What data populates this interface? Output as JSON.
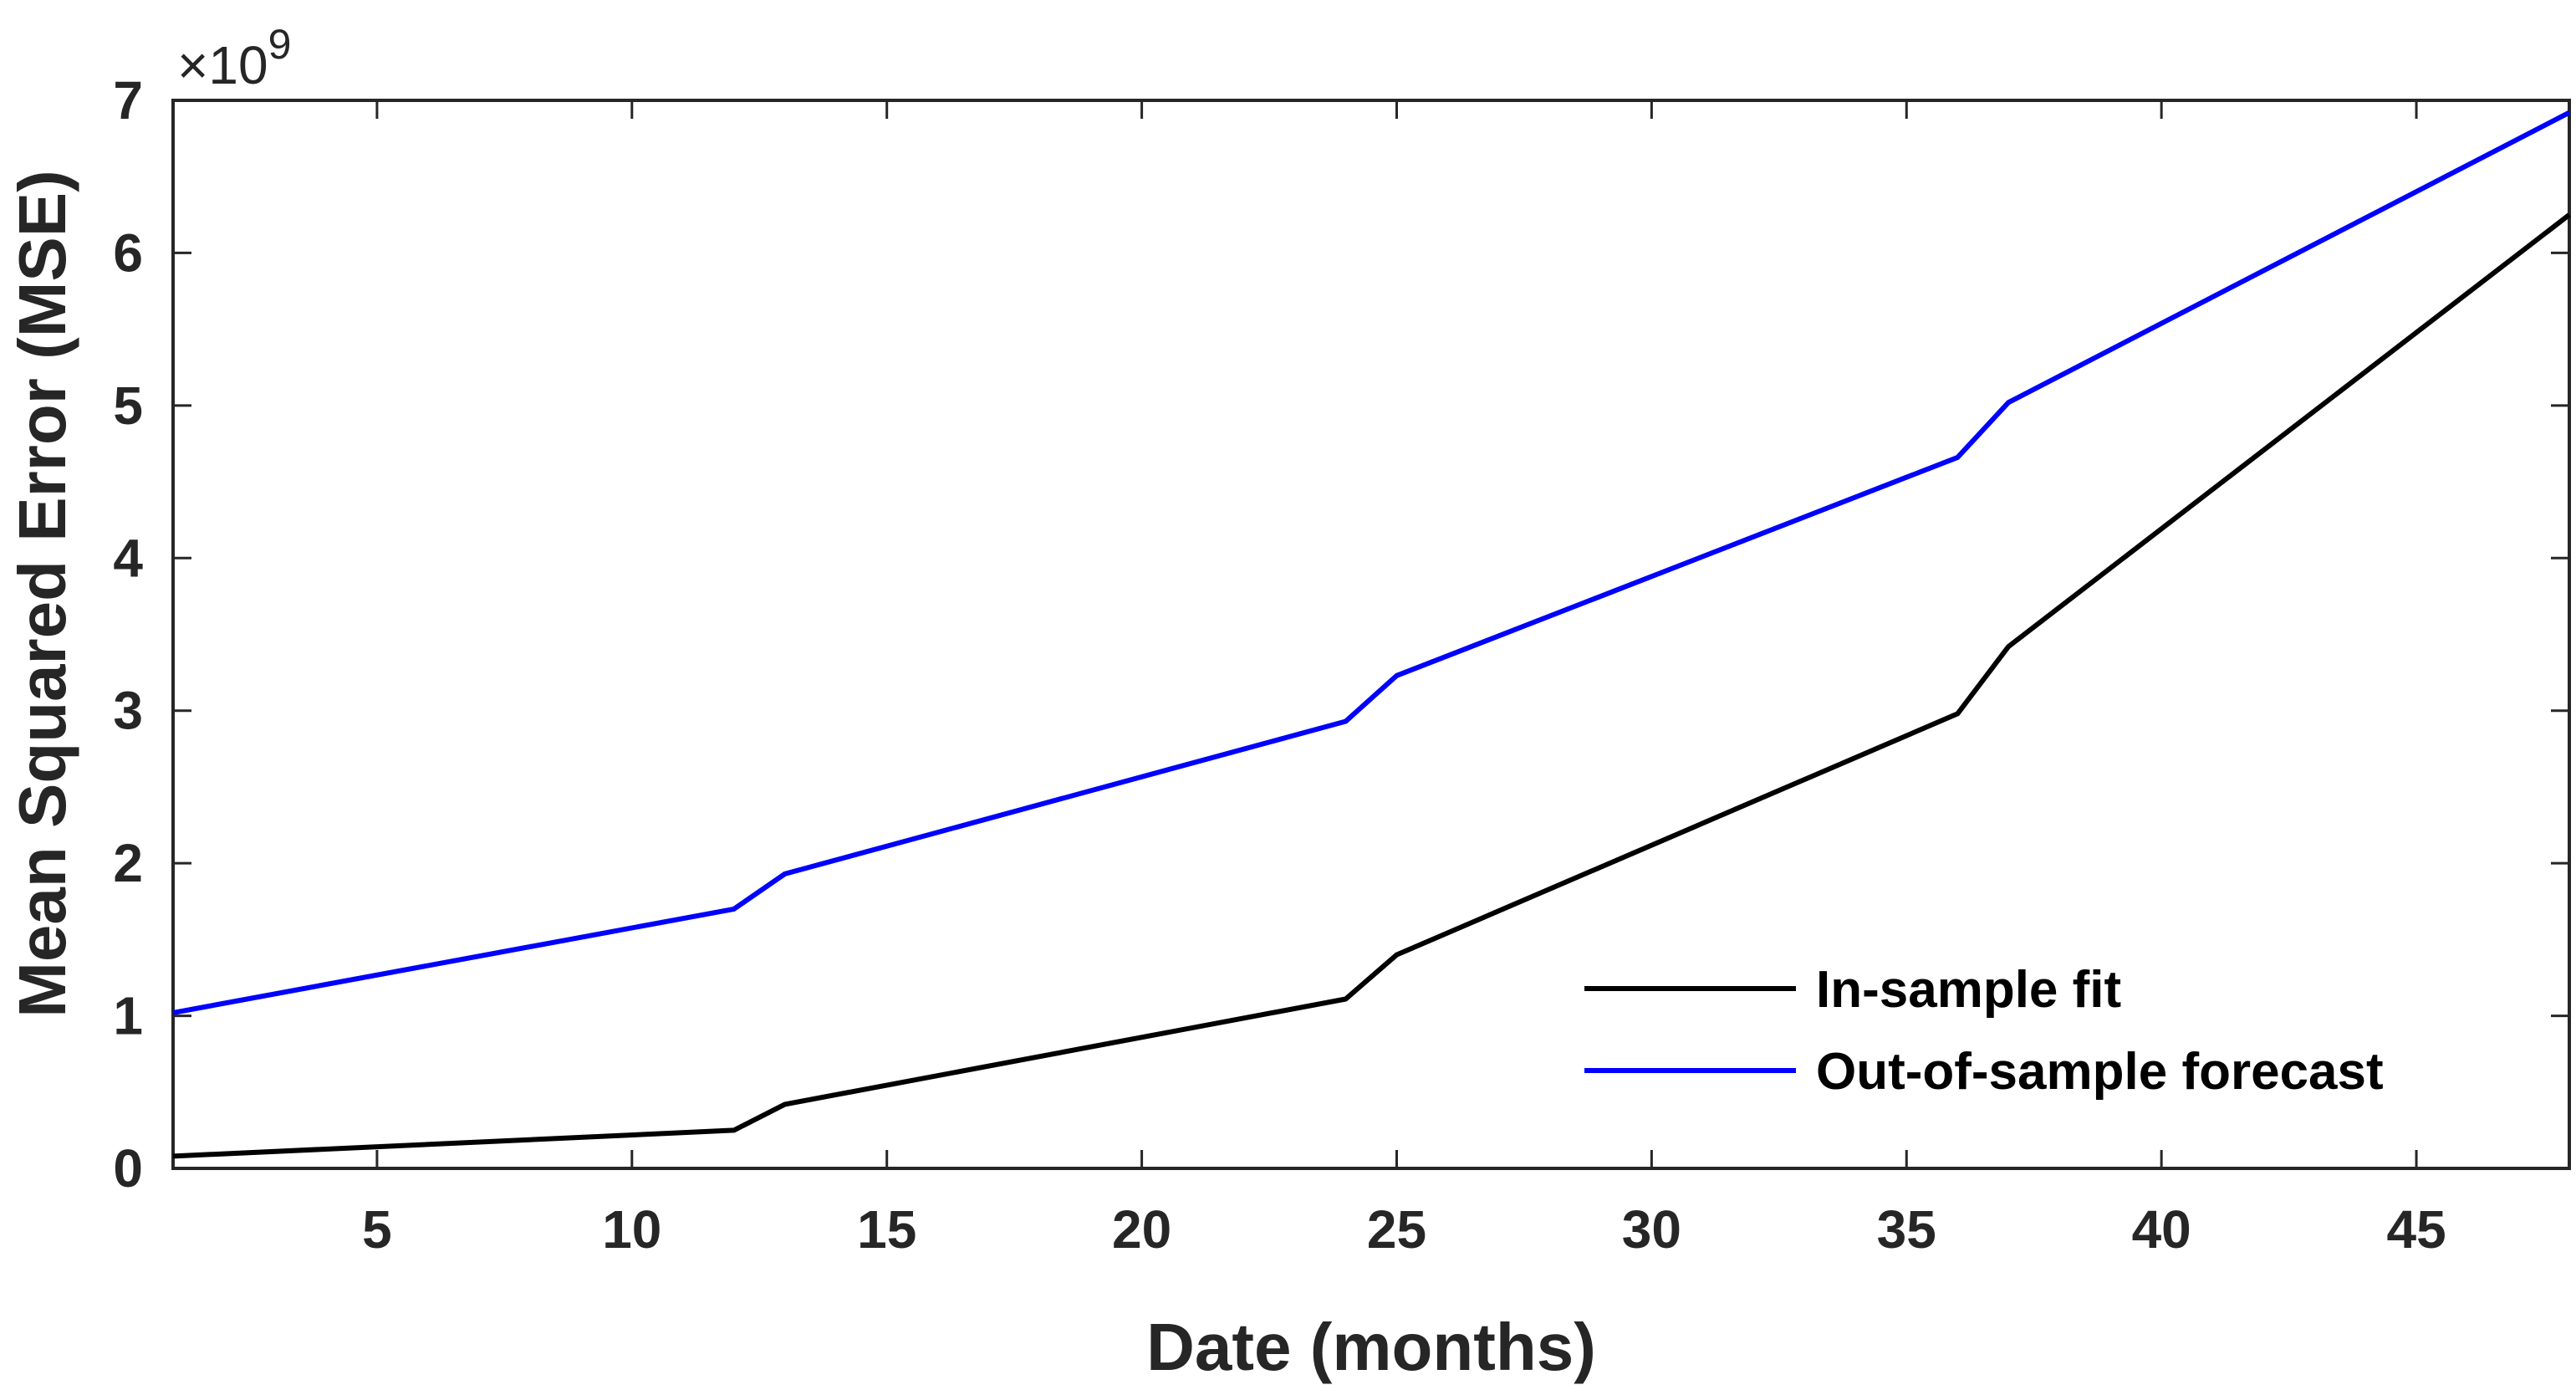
{
  "chart_data": {
    "type": "line",
    "xlabel": "Date (months)",
    "ylabel": "Mean Squared Error (MSE)",
    "exponent_label": "×10",
    "exponent_power": "9",
    "xlim": [
      1,
      48
    ],
    "ylim": [
      0,
      7
    ],
    "xticks": [
      5,
      10,
      15,
      20,
      25,
      30,
      35,
      40,
      45
    ],
    "yticks": [
      0,
      1,
      2,
      3,
      4,
      5,
      6,
      7
    ],
    "grid": false,
    "legend_position": "bottom-right",
    "series": [
      {
        "name": "In-sample fit",
        "color": "#000000",
        "x": [
          1,
          12,
          13,
          24,
          25,
          36,
          37,
          48
        ],
        "y": [
          0.08,
          0.25,
          0.42,
          1.11,
          1.4,
          2.98,
          3.42,
          6.25
        ]
      },
      {
        "name": "Out-of-sample forecast",
        "color": "#0000ff",
        "x": [
          1,
          12,
          13,
          24,
          25,
          36,
          37,
          48
        ],
        "y": [
          1.02,
          1.7,
          1.93,
          2.93,
          3.23,
          4.66,
          5.02,
          6.92
        ]
      }
    ]
  }
}
